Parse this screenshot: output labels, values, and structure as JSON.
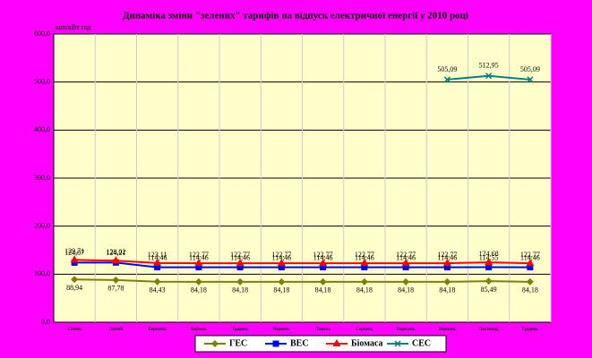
{
  "chart_data": {
    "type": "line",
    "title": "Динаміка змiни \"зелених\" тарифiв на вiдпуск електричної енергії у 2010 році",
    "y_label": "коп/кВт год",
    "categories": [
      "Січень",
      "Лютий",
      "Березень",
      "Квітень",
      "Травень",
      "Червень",
      "Липень",
      "Серпень",
      "Вересень",
      "Жовтень",
      "Листопад",
      "Грудень"
    ],
    "ylim": [
      0,
      600
    ],
    "yticks": [
      {
        "value": 0,
        "label": "0,0"
      },
      {
        "value": 100,
        "label": "100,0"
      },
      {
        "value": 200,
        "label": "200,0"
      },
      {
        "value": 300,
        "label": "300,0"
      },
      {
        "value": 400,
        "label": "400,0"
      },
      {
        "value": 500,
        "label": "500,0"
      },
      {
        "value": 600,
        "label": "600,0"
      }
    ],
    "grid": true,
    "legend": "bottom",
    "series": [
      {
        "name": "ГЕС",
        "color": "#808000",
        "marker": "diamond",
        "values": [
          88.94,
          87.78,
          84.43,
          84.18,
          84.18,
          84.18,
          84.18,
          84.18,
          84.18,
          84.18,
          85.49,
          84.18
        ],
        "value_labels": [
          "88,94",
          "87,78",
          "84,43",
          "84,18",
          "84,18",
          "84,18",
          "84,18",
          "84,18",
          "84,18",
          "84,18",
          "85,49",
          "84,18"
        ]
      },
      {
        "name": "ВЕС",
        "color": "#0000ff",
        "marker": "square",
        "values": [
          124.07,
          124.21,
          114.46,
          114.46,
          114.46,
          114.46,
          114.46,
          114.46,
          114.46,
          114.46,
          114.55,
          114.46
        ],
        "value_labels": [
          "124,07",
          "124,21",
          "114,46",
          "114,46",
          "114,46",
          "114,46",
          "114,46",
          "114,46",
          "114,46",
          "114,46",
          "114,55",
          "114,46"
        ]
      },
      {
        "name": "Біомаса",
        "color": "#ff0000",
        "marker": "triangle",
        "values": [
          129.71,
          128.02,
          123.11,
          122.77,
          122.77,
          122.77,
          122.77,
          122.77,
          122.77,
          122.77,
          124.68,
          122.77
        ],
        "value_labels": [
          "129,71",
          "128,02",
          "123,11",
          "122,77",
          "122,77",
          "122,77",
          "122,77",
          "122,77",
          "122,77",
          "122,77",
          "124,68",
          "122,77"
        ]
      },
      {
        "name": "СЕС",
        "color": "#008080",
        "marker": "x",
        "values": [
          null,
          null,
          null,
          null,
          null,
          null,
          null,
          null,
          null,
          505.09,
          512.95,
          505.09
        ],
        "value_labels": [
          null,
          null,
          null,
          null,
          null,
          null,
          null,
          null,
          null,
          "505,09",
          "512,95",
          "505,09"
        ]
      }
    ]
  }
}
